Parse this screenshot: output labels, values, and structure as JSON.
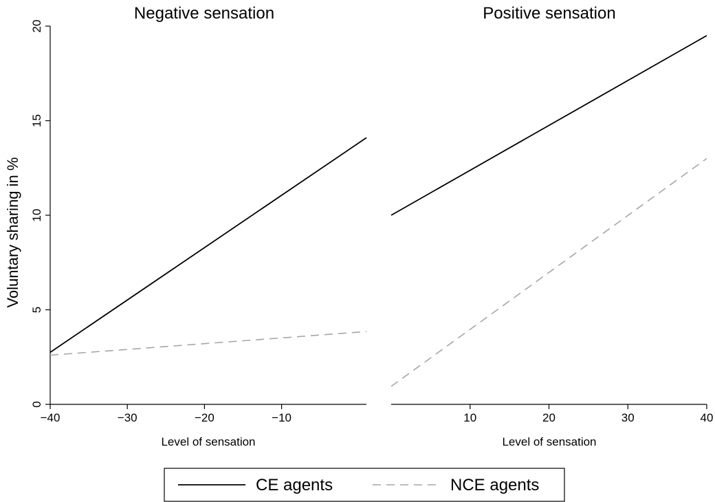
{
  "chart_data": {
    "type": "line",
    "ylabel": "Voluntary sharing in %",
    "ylim": [
      0,
      20
    ],
    "yticks": [
      0,
      5,
      10,
      15,
      20
    ],
    "legend": {
      "placement": "bottom-center",
      "entries": [
        {
          "name": "CE agents",
          "color": "#000000",
          "dash": "solid"
        },
        {
          "name": "NCE agents",
          "color": "#a6a6a6",
          "dash": "dashed"
        }
      ]
    },
    "panels": [
      {
        "title": "Negative sensation",
        "xlabel": "Level of sensation",
        "xlim": [
          -40,
          1
        ],
        "xticks": [
          -40,
          -30,
          -20,
          -10
        ],
        "xtick_labels": [
          "−40",
          "−30",
          "−20",
          "−10"
        ],
        "series": [
          {
            "name": "CE agents",
            "x": [
              -40,
              1
            ],
            "y": [
              2.75,
              14.1
            ]
          },
          {
            "name": "NCE agents",
            "x": [
              -40,
              1
            ],
            "y": [
              2.6,
              3.85
            ]
          }
        ]
      },
      {
        "title": "Positive sensation",
        "xlabel": "Level of sensation",
        "xlim": [
          0,
          40
        ],
        "xticks": [
          10,
          20,
          30,
          40
        ],
        "xtick_labels": [
          "10",
          "20",
          "30",
          "40"
        ],
        "series": [
          {
            "name": "CE agents",
            "x": [
              0,
              40
            ],
            "y": [
              10.0,
              19.5
            ]
          },
          {
            "name": "NCE agents",
            "x": [
              0,
              40
            ],
            "y": [
              0.95,
              13.0
            ]
          }
        ]
      }
    ]
  }
}
